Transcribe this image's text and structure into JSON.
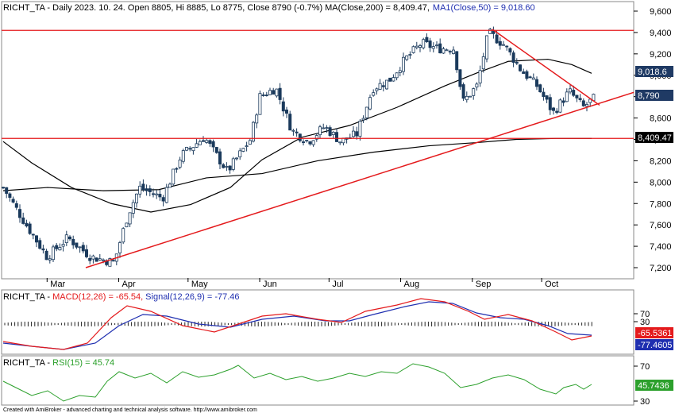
{
  "header": {
    "symbol": "RICHT_TA",
    "info": " - Daily 2023. 10. 24. Open 8805, Hi 8885, Lo 8775, Close 8790 (-0.7%)",
    "ma200_label": "MA(Close,200) = 8,409.47,",
    "ma50_label": "MA1(Close,50) = 9,018.60"
  },
  "macd_header": {
    "symbol": "RICHT_TA",
    "sep": " - ",
    "macd_label": "MACD(12,26) = -65.54,",
    "signal_label": "Signal(12,26,9) = -77.46"
  },
  "rsi_header": {
    "symbol": "RICHT_TA",
    "sep": " - ",
    "rsi_label": "RSI(15) = 45.74"
  },
  "footer": "Created with AmiBroker - advanced charting and technical analysis software. http://www.amibroker.com",
  "badges": {
    "ma50": "9,018.6",
    "close": "8,790",
    "ma200": "8,409.47",
    "macd": "-65.5361",
    "signal": "-77.4605",
    "rsi": "45.7436"
  },
  "colors": {
    "macd": "#e41a1c",
    "signal": "#1f2fb0",
    "rsi": "#2ca02c",
    "trend": "#e41a1c",
    "candle": "#1b3a5c",
    "ma": "#000000"
  },
  "chart_data": [
    {
      "type": "candlestick",
      "title": "RICHT_TA Daily",
      "x_months": [
        "Mar",
        "Apr",
        "May",
        "Jun",
        "Jul",
        "Aug",
        "Sep",
        "Oct"
      ],
      "y_ticks": [
        "7,200",
        "7,400",
        "7,600",
        "7,800",
        "8,000",
        "8,200",
        "8,400",
        "8,600",
        "8,800",
        "9,000",
        "9,200",
        "9,400",
        "9,600"
      ],
      "ylim": [
        7050,
        9700
      ],
      "last": {
        "date": "2023-10-24",
        "open": 8805,
        "high": 8885,
        "low": 8775,
        "close": 8790,
        "change_pct": -0.7
      },
      "close_path": [
        {
          "x": "2023-02-10",
          "y": 7950
        },
        {
          "x": "2023-02-20",
          "y": 7600
        },
        {
          "x": "2023-03-01",
          "y": 7300
        },
        {
          "x": "2023-03-10",
          "y": 7480
        },
        {
          "x": "2023-03-20",
          "y": 7300
        },
        {
          "x": "2023-03-30",
          "y": 7250
        },
        {
          "x": "2023-04-05",
          "y": 7700
        },
        {
          "x": "2023-04-10",
          "y": 7950
        },
        {
          "x": "2023-04-20",
          "y": 7850
        },
        {
          "x": "2023-04-28",
          "y": 8250
        },
        {
          "x": "2023-05-08",
          "y": 8420
        },
        {
          "x": "2023-05-18",
          "y": 8100
        },
        {
          "x": "2023-05-28",
          "y": 8400
        },
        {
          "x": "2023-06-01",
          "y": 8800
        },
        {
          "x": "2023-06-08",
          "y": 8880
        },
        {
          "x": "2023-06-15",
          "y": 8480
        },
        {
          "x": "2023-06-22",
          "y": 8380
        },
        {
          "x": "2023-06-29",
          "y": 8520
        },
        {
          "x": "2023-07-06",
          "y": 8380
        },
        {
          "x": "2023-07-13",
          "y": 8450
        },
        {
          "x": "2023-07-20",
          "y": 8880
        },
        {
          "x": "2023-07-27",
          "y": 8950
        },
        {
          "x": "2023-08-03",
          "y": 9150
        },
        {
          "x": "2023-08-10",
          "y": 9300
        },
        {
          "x": "2023-08-17",
          "y": 9250
        },
        {
          "x": "2023-08-24",
          "y": 9250
        },
        {
          "x": "2023-08-28",
          "y": 8750
        },
        {
          "x": "2023-09-03",
          "y": 8900
        },
        {
          "x": "2023-09-08",
          "y": 9400
        },
        {
          "x": "2023-09-15",
          "y": 9280
        },
        {
          "x": "2023-09-22",
          "y": 9050
        },
        {
          "x": "2023-09-29",
          "y": 8900
        },
        {
          "x": "2023-10-06",
          "y": 8650
        },
        {
          "x": "2023-10-13",
          "y": 8850
        },
        {
          "x": "2023-10-19",
          "y": 8700
        },
        {
          "x": "2023-10-24",
          "y": 8790
        }
      ],
      "series": [
        {
          "name": "MA(Close,200)",
          "last": 8409.47
        },
        {
          "name": "MA1(Close,50)",
          "last": 9018.6
        }
      ],
      "horizontal_lines": [
        9420,
        8409.47
      ]
    },
    {
      "type": "line",
      "title": "MACD",
      "y_ticks": [
        "30",
        "70"
      ],
      "series": [
        {
          "name": "MACD(12,26)",
          "last": -65.54
        },
        {
          "name": "Signal(12,26,9)",
          "last": -77.46
        }
      ]
    },
    {
      "type": "line",
      "title": "RSI",
      "y_ticks": [
        "30",
        "70"
      ],
      "series": [
        {
          "name": "RSI(15)",
          "last": 45.74
        }
      ]
    }
  ]
}
